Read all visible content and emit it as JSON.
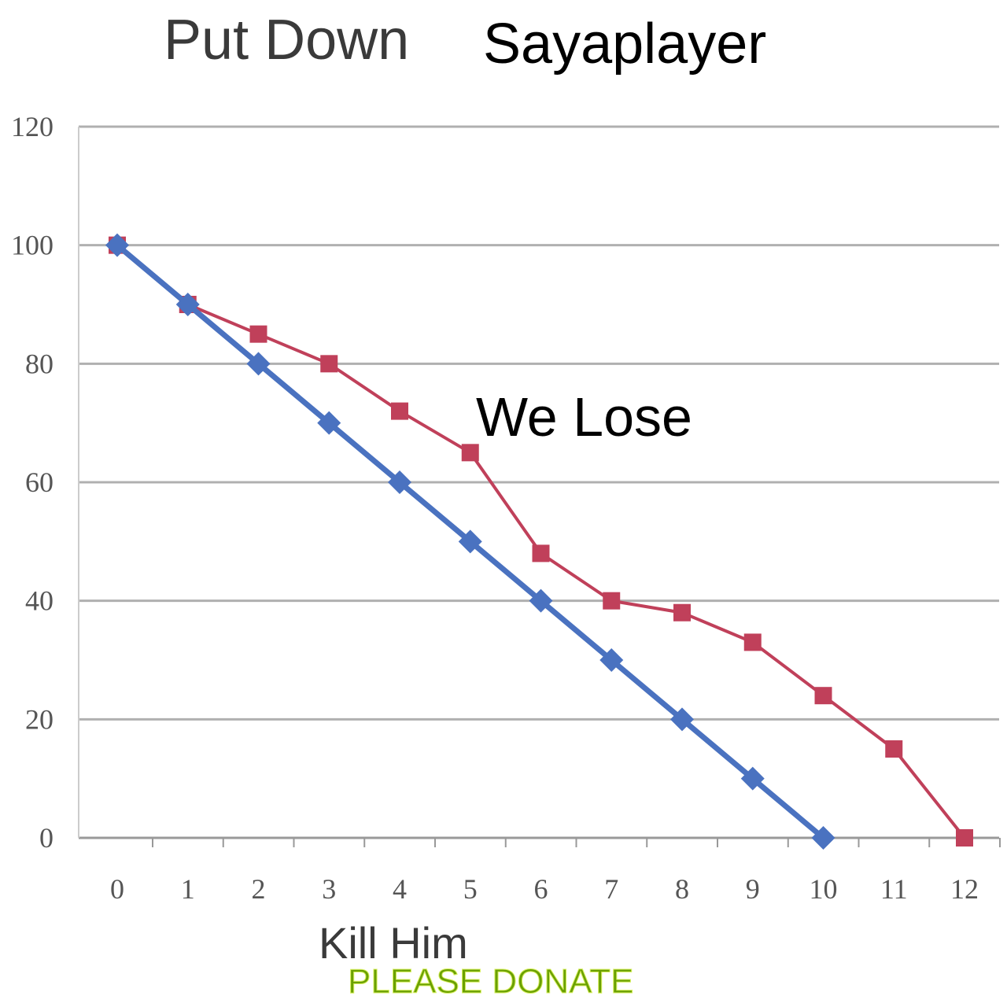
{
  "chart_data": {
    "type": "line",
    "title_part1": "Put Down",
    "title_part2": "Sayaplayer",
    "xlabel": "Kill Him",
    "ylabel": "",
    "annotation": "We Lose",
    "footer": "PLEASE DONATE",
    "x_ticks": [
      "0",
      "1",
      "2",
      "3",
      "4",
      "5",
      "6",
      "7",
      "8",
      "9",
      "10",
      "11",
      "12"
    ],
    "y_ticks": [
      "0",
      "20",
      "40",
      "60",
      "80",
      "100",
      "120"
    ],
    "xlim": [
      0,
      12
    ],
    "ylim": [
      0,
      120
    ],
    "grid": true,
    "series": [
      {
        "x": [
          0,
          1,
          2,
          3,
          4,
          5,
          6,
          7,
          8,
          9,
          10
        ],
        "values": [
          100,
          90,
          80,
          70,
          60,
          50,
          40,
          30,
          20,
          10,
          0
        ],
        "color": "#4a72c0",
        "marker": "diamond"
      },
      {
        "x": [
          0,
          1,
          2,
          3,
          4,
          5,
          6,
          7,
          8,
          9,
          10,
          11,
          12
        ],
        "values": [
          100,
          90,
          85,
          80,
          72,
          65,
          48,
          40,
          38,
          33,
          24,
          15,
          0
        ],
        "color": "#c0405a",
        "marker": "square"
      }
    ],
    "colors": {
      "title_gray": "#3a3a3a",
      "footer_green": "#6aa000",
      "grid": "#b0b0b0"
    }
  }
}
